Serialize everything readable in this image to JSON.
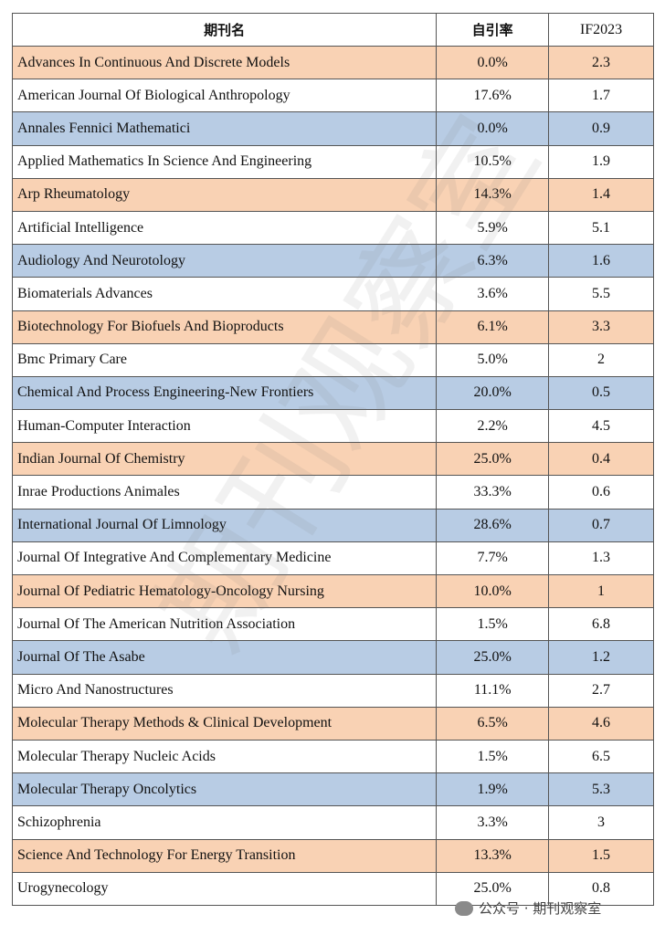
{
  "table": {
    "header": [
      "期刊名",
      "自引率",
      "IF2023"
    ],
    "rows": [
      [
        "Advances In Continuous And Discrete Models",
        "0.0%",
        "2.3"
      ],
      [
        "American Journal Of Biological Anthropology",
        "17.6%",
        "1.7"
      ],
      [
        "Annales Fennici Mathematici",
        "0.0%",
        "0.9"
      ],
      [
        "Applied Mathematics In Science And Engineering",
        "10.5%",
        "1.9"
      ],
      [
        "Arp Rheumatology",
        "14.3%",
        "1.4"
      ],
      [
        "Artificial Intelligence",
        "5.9%",
        "5.1"
      ],
      [
        "Audiology And Neurotology",
        "6.3%",
        "1.6"
      ],
      [
        "Biomaterials Advances",
        "3.6%",
        "5.5"
      ],
      [
        "Biotechnology For Biofuels And Bioproducts",
        "6.1%",
        "3.3"
      ],
      [
        "Bmc Primary Care",
        "5.0%",
        "2"
      ],
      [
        "Chemical And Process Engineering-New Frontiers",
        "20.0%",
        "0.5"
      ],
      [
        "Human-Computer Interaction",
        "2.2%",
        "4.5"
      ],
      [
        "Indian Journal Of Chemistry",
        "25.0%",
        "0.4"
      ],
      [
        "Inrae Productions Animales",
        "33.3%",
        "0.6"
      ],
      [
        "International Journal Of Limnology",
        "28.6%",
        "0.7"
      ],
      [
        "Journal Of Integrative And Complementary Medicine",
        "7.7%",
        "1.3"
      ],
      [
        "Journal Of Pediatric Hematology-Oncology Nursing",
        "10.0%",
        "1"
      ],
      [
        "Journal Of The American Nutrition Association",
        "1.5%",
        "6.8"
      ],
      [
        "Journal Of The Asabe",
        "25.0%",
        "1.2"
      ],
      [
        "Micro And Nanostructures",
        "11.1%",
        "2.7"
      ],
      [
        "Molecular Therapy Methods & Clinical Development",
        "6.5%",
        "4.6"
      ],
      [
        "Molecular Therapy Nucleic Acids",
        "1.5%",
        "6.5"
      ],
      [
        "Molecular Therapy Oncolytics",
        "1.9%",
        "5.3"
      ],
      [
        "Schizophrenia",
        "3.3%",
        "3"
      ],
      [
        "Science And Technology For Energy Transition",
        "13.3%",
        "1.5"
      ],
      [
        "Urogynecology",
        "25.0%",
        "0.8"
      ]
    ]
  },
  "watermark": "期刊观察室",
  "footer": "公众号 · 期刊观察室"
}
